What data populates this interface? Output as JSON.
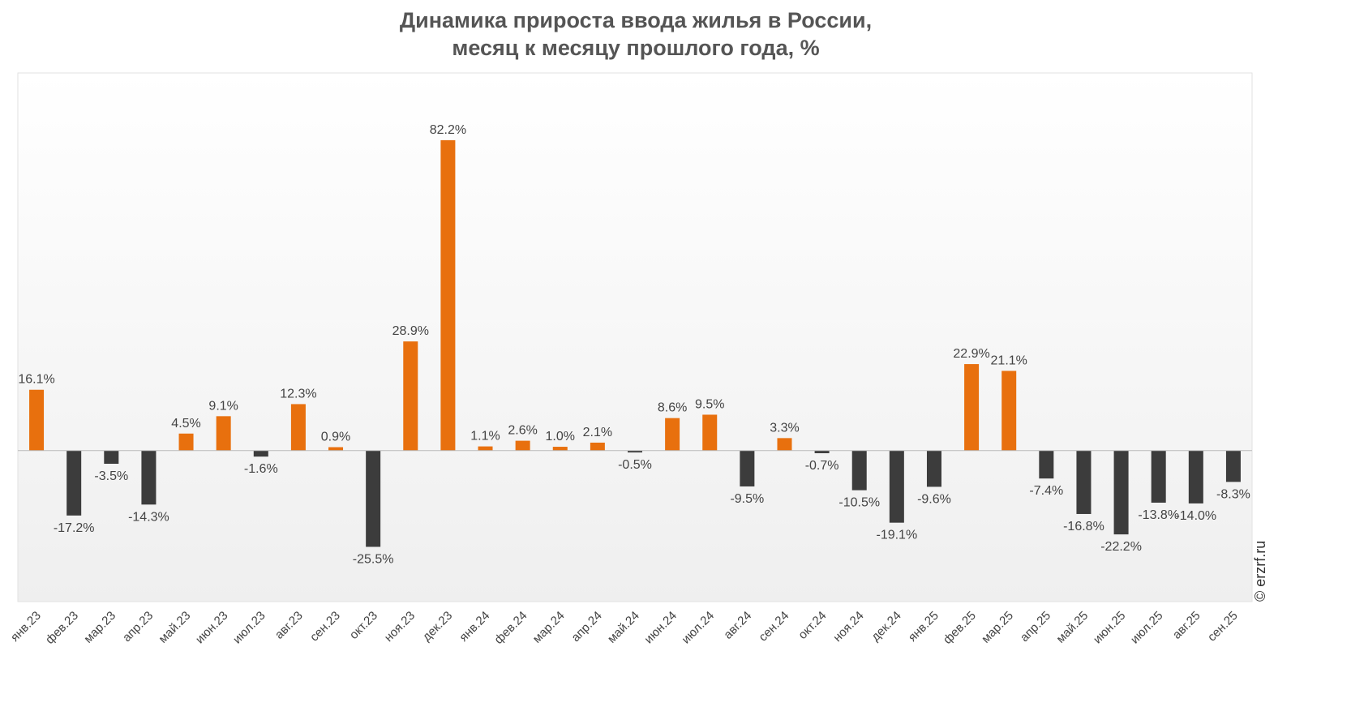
{
  "chart_data": {
    "type": "bar",
    "title": "Динамика прироста ввода жилья в России,",
    "subtitle": "месяц к месяцу прошлого года, %",
    "xlabel": "",
    "ylabel": "",
    "ylim": [
      -40,
      100
    ],
    "grid": false,
    "legend": "none",
    "watermark": "© erzrf.ru",
    "colors": {
      "positive": "#E8700E",
      "negative": "#3C3C3C"
    },
    "categories": [
      "янв.23",
      "фев.23",
      "мар.23",
      "апр.23",
      "май.23",
      "июн.23",
      "июл.23",
      "авг.23",
      "сен.23",
      "окт.23",
      "ноя.23",
      "дек.23",
      "янв.24",
      "фев.24",
      "мар.24",
      "апр.24",
      "май.24",
      "июн.24",
      "июл.24",
      "авг.24",
      "сен.24",
      "окт.24",
      "ноя.24",
      "дек.24",
      "янв.25",
      "фев.25",
      "мар.25",
      "апр.25",
      "май.25",
      "июн.25",
      "июл.25",
      "авг.25",
      "сен.25"
    ],
    "values": [
      16.1,
      -17.2,
      -3.5,
      -14.3,
      4.5,
      9.1,
      -1.6,
      12.3,
      0.9,
      -25.5,
      28.9,
      82.2,
      1.1,
      2.6,
      1.0,
      2.1,
      -0.5,
      8.6,
      9.5,
      -9.5,
      3.3,
      -0.7,
      -10.5,
      -19.1,
      -9.6,
      22.9,
      21.1,
      -7.4,
      -16.8,
      -22.2,
      -13.8,
      -14.0,
      -8.3
    ],
    "data_labels": [
      "16.1%",
      "-17.2%",
      "-3.5%",
      "-14.3%",
      "4.5%",
      "9.1%",
      "-1.6%",
      "12.3%",
      "0.9%",
      "-25.5%",
      "28.9%",
      "82.2%",
      "1.1%",
      "2.6%",
      "1.0%",
      "2.1%",
      "-0.5%",
      "8.6%",
      "9.5%",
      "-9.5%",
      "3.3%",
      "-0.7%",
      "-10.5%",
      "-19.1%",
      "-9.6%",
      "22.9%",
      "21.1%",
      "-7.4%",
      "-16.8%",
      "-22.2%",
      "-13.8%",
      "-14.0%",
      "-8.3%"
    ]
  }
}
